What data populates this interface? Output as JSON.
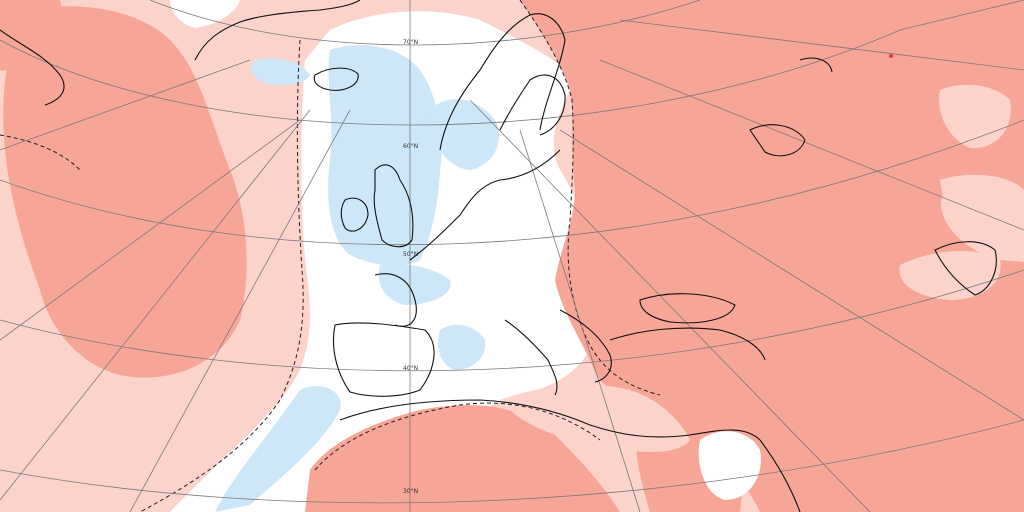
{
  "map": {
    "type": "anomaly-map",
    "projection": "polar-stereographic",
    "region": "North Atlantic and Europe",
    "colors": {
      "sea_background": "#ffffff",
      "warm_light": "#fcd3cb",
      "warm_mid": "#f7a596",
      "warm_strong": "#e8342c",
      "cool_light": "#d4ebfb",
      "cool_mid": "#b6dcf6",
      "coastline": "#111111",
      "borders": "#444444",
      "graticule": "#7a7a7a",
      "contour_dashed": "#222222"
    },
    "latitude_labels": [
      "70°N",
      "60°N",
      "50°N",
      "40°N",
      "30°N"
    ]
  }
}
